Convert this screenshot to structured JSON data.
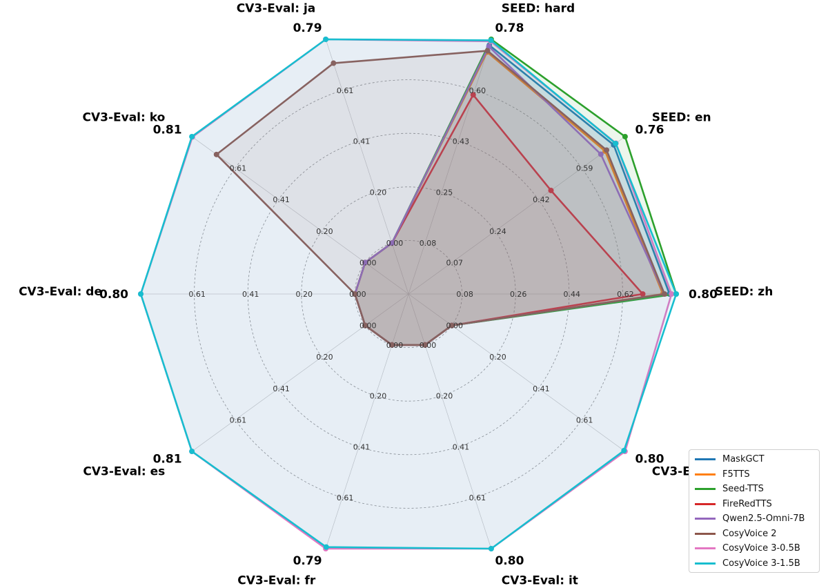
{
  "chart_data": {
    "type": "radar",
    "axes": [
      "SEED: zh",
      "SEED: en",
      "SEED: hard",
      "CV3-Eval: ja",
      "CV3-Eval: ko",
      "CV3-Eval: de",
      "CV3-Eval: es",
      "CV3-Eval: fr",
      "CV3-Eval: it",
      "CV3-Eval: ru"
    ],
    "axis_max_labels": [
      "0.80",
      "0.76",
      "0.78",
      "0.79",
      "0.81",
      "0.80",
      "0.81",
      "0.79",
      "0.80",
      "0.80"
    ],
    "axis_max": [
      0.8,
      0.76,
      0.78,
      0.79,
      0.81,
      0.8,
      0.81,
      0.79,
      0.8,
      0.8
    ],
    "tick_labels": [
      [
        "0.08",
        "0.26",
        "0.44",
        "0.62"
      ],
      [
        "0.07",
        "0.24",
        "0.42",
        "0.59"
      ],
      [
        "0.08",
        "0.25",
        "0.43",
        "0.60"
      ],
      [
        "0.00",
        "0.20",
        "0.41",
        "0.61"
      ],
      [
        "0.00",
        "0.20",
        "0.41",
        "0.61"
      ],
      [
        "0.00",
        "0.20",
        "0.41",
        "0.61"
      ],
      [
        "0.00",
        "0.20",
        "0.41",
        "0.61"
      ],
      [
        "0.00",
        "0.20",
        "0.41",
        "0.61"
      ],
      [
        "0.00",
        "0.20",
        "0.41",
        "0.61"
      ],
      [
        "0.00",
        "0.20",
        "0.41",
        "0.61"
      ]
    ],
    "tick_values": [
      [
        0.08,
        0.26,
        0.44,
        0.62
      ],
      [
        0.07,
        0.24,
        0.42,
        0.59
      ],
      [
        0.08,
        0.25,
        0.43,
        0.6
      ],
      [
        0.0,
        0.2,
        0.41,
        0.61
      ],
      [
        0.0,
        0.2,
        0.41,
        0.61
      ],
      [
        0.0,
        0.2,
        0.41,
        0.61
      ],
      [
        0.0,
        0.2,
        0.41,
        0.61
      ],
      [
        0.0,
        0.2,
        0.41,
        0.61
      ],
      [
        0.0,
        0.2,
        0.41,
        0.61
      ],
      [
        0.0,
        0.2,
        0.41,
        0.61
      ]
    ],
    "series": [
      {
        "name": "MaskGCT",
        "color": "#1f77b4",
        "values": [
          0.78,
          0.72,
          0.762,
          0.0,
          0.0,
          0.0,
          0.0,
          0.0,
          0.0,
          0.0
        ]
      },
      {
        "name": "F5TTS",
        "color": "#ff7f0e",
        "values": [
          0.76,
          0.69,
          0.741,
          0.0,
          0.0,
          0.0,
          0.0,
          0.0,
          0.0,
          0.0
        ]
      },
      {
        "name": "Seed-TTS",
        "color": "#2ca02c",
        "values": [
          0.8,
          0.76,
          0.78,
          0.0,
          0.0,
          0.0,
          0.0,
          0.0,
          0.0,
          0.0
        ]
      },
      {
        "name": "FireRedTTS",
        "color": "#d62728",
        "values": [
          0.7,
          0.5,
          0.61,
          0.0,
          0.0,
          0.0,
          0.0,
          0.0,
          0.0,
          0.0
        ]
      },
      {
        "name": "Qwen2.5-Omni-7B",
        "color": "#9467bd",
        "values": [
          0.765,
          0.675,
          0.758,
          0.0,
          0.0,
          0.0,
          0.0,
          0.0,
          0.0,
          0.0
        ]
      },
      {
        "name": "CosyVoice 2",
        "color": "#8c564b",
        "values": [
          0.765,
          0.695,
          0.745,
          0.716,
          0.718,
          0.0,
          0.0,
          0.0,
          0.0,
          0.0
        ]
      },
      {
        "name": "CosyVoice 3-0.5B",
        "color": "#e377c2",
        "values": [
          0.786,
          0.728,
          0.774,
          0.79,
          0.808,
          0.8,
          0.81,
          0.79,
          0.806,
          0.8
        ]
      },
      {
        "name": "CosyVoice 3-1.5B",
        "color": "#17becf",
        "values": [
          0.8,
          0.727,
          0.777,
          0.79,
          0.81,
          0.8,
          0.81,
          0.785,
          0.8,
          0.796
        ]
      }
    ],
    "grid": true,
    "legend_position": "bottom-right"
  }
}
